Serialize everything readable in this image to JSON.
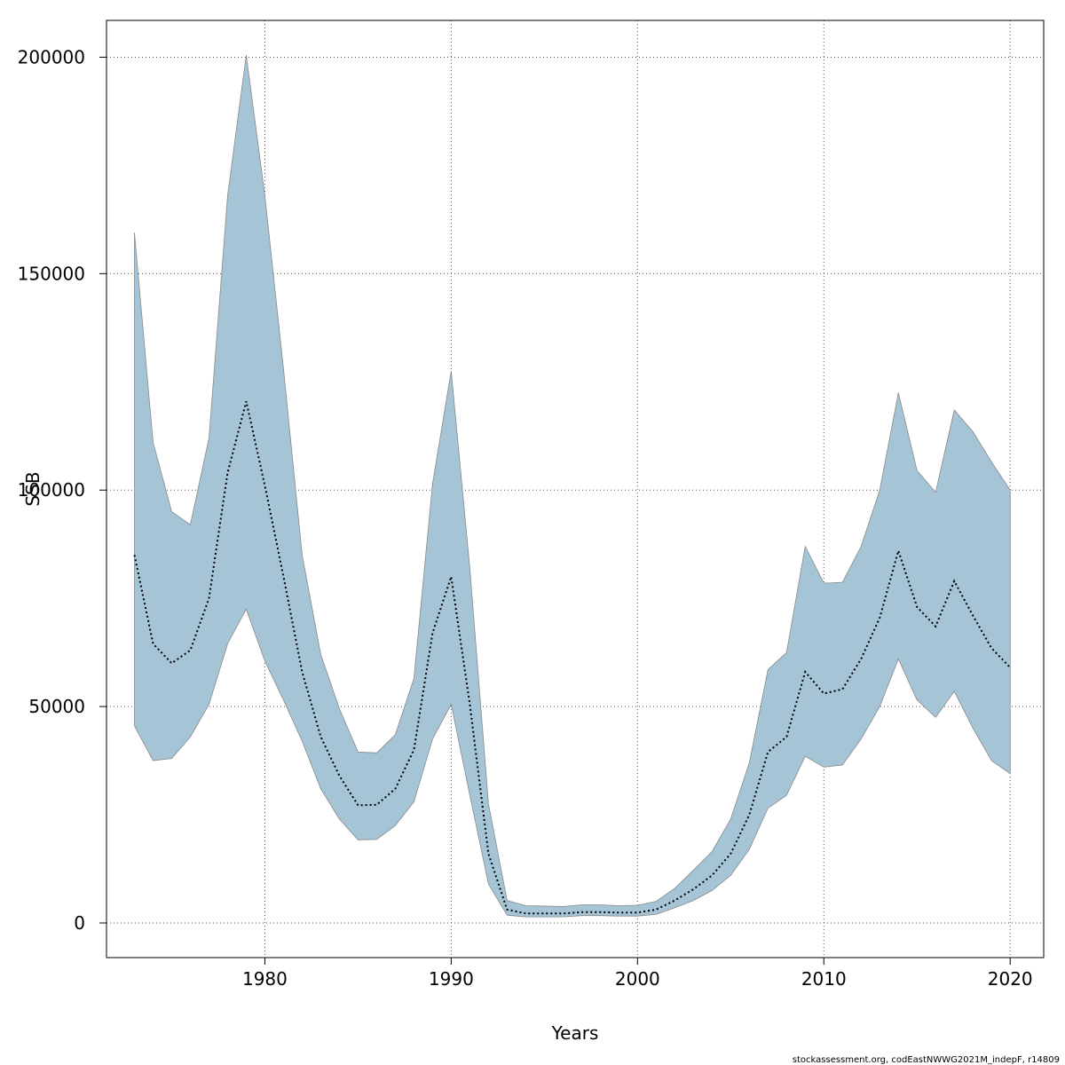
{
  "chart_data": {
    "type": "area",
    "xlabel": "Years",
    "ylabel": "SSB",
    "xlim": [
      1971.5,
      2021.8
    ],
    "ylim": [
      -8000,
      208500
    ],
    "xticks": [
      1980,
      1990,
      2000,
      2010,
      2020
    ],
    "yticks": [
      0,
      50000,
      100000,
      150000,
      200000
    ],
    "grid": true,
    "colors": {
      "band": "#a5c4d5",
      "band_edge": "#8a8a8a",
      "line": "#000000",
      "grid": "#555555"
    },
    "x": [
      1973,
      1974,
      1975,
      1976,
      1977,
      1978,
      1979,
      1980,
      1981,
      1982,
      1983,
      1984,
      1985,
      1986,
      1987,
      1988,
      1989,
      1990,
      1991,
      1992,
      1993,
      1994,
      1995,
      1996,
      1997,
      1998,
      1999,
      2000,
      2001,
      2002,
      2003,
      2004,
      2005,
      2006,
      2007,
      2008,
      2009,
      2010,
      2011,
      2012,
      2013,
      2014,
      2015,
      2016,
      2017,
      2018,
      2019,
      2020
    ],
    "series": [
      {
        "values": [
          85000,
          64500,
          60000,
          63000,
          75000,
          104000,
          120500,
          101000,
          80000,
          58000,
          43000,
          34000,
          27200,
          27300,
          31000,
          40000,
          67000,
          80000,
          50500,
          16000,
          3100,
          2200,
          2200,
          2200,
          2500,
          2500,
          2400,
          2400,
          3100,
          5200,
          7800,
          11000,
          16000,
          25000,
          39500,
          43000,
          58000,
          53000,
          54000,
          61000,
          70500,
          86000,
          73000,
          68500,
          79000,
          71000,
          63500,
          59000
        ]
      }
    ],
    "band_upper": [
      159500,
      111000,
      95000,
      92000,
      112000,
      168000,
      200500,
      168000,
      128000,
      85000,
      62000,
      49500,
      39500,
      39300,
      43500,
      56500,
      101500,
      127500,
      82000,
      27500,
      5200,
      4000,
      3900,
      3800,
      4200,
      4200,
      4000,
      4100,
      5000,
      8000,
      12200,
      16500,
      24000,
      37000,
      58500,
      62500,
      87000,
      78500,
      78700,
      87000,
      100000,
      122500,
      104500,
      99500,
      118500,
      113500,
      106500,
      100000
    ],
    "band_lower": [
      45500,
      37500,
      38000,
      43000,
      50500,
      64500,
      72500,
      60500,
      51500,
      42000,
      31000,
      24000,
      19200,
      19300,
      22500,
      28000,
      42500,
      50500,
      29500,
      9000,
      1800,
      1400,
      1400,
      1400,
      1700,
      1700,
      1600,
      1600,
      2000,
      3500,
      5200,
      7500,
      11000,
      17000,
      26500,
      29500,
      38500,
      36000,
      36500,
      42500,
      50000,
      61000,
      51500,
      47500,
      53500,
      45000,
      37500,
      34500
    ]
  },
  "footer_text": "stockassessment.org, codEastNWWG2021M_indepF, r14809"
}
